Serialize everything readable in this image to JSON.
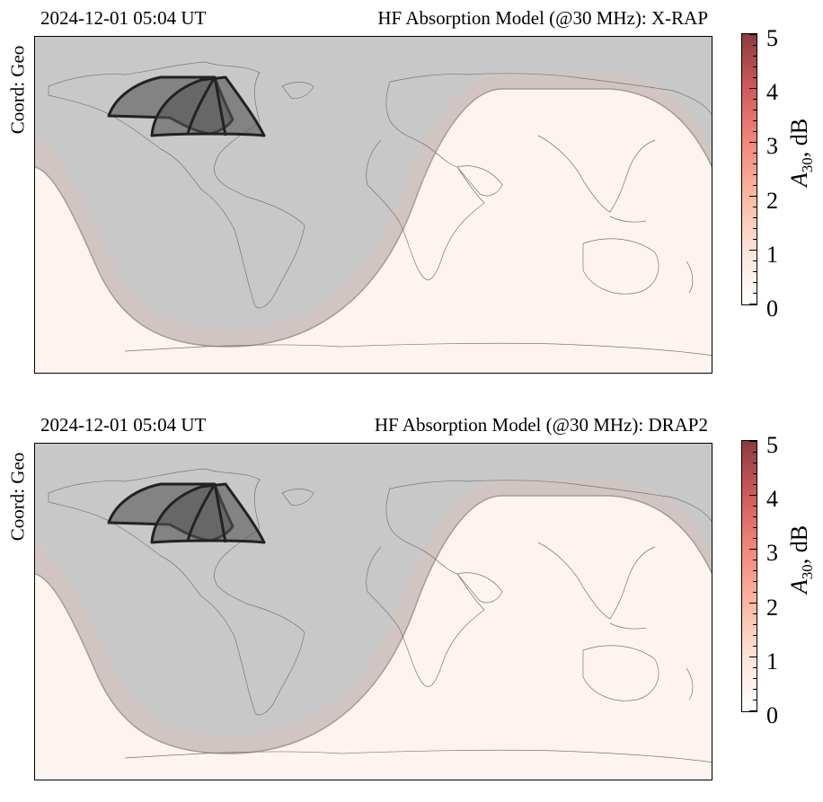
{
  "panels": [
    {
      "time_label": "2024-12-01 05:04 UT",
      "title": "HF Absorption Model (@30 MHz):",
      "model": "X-RAP",
      "coord_label": "Coord: Geo"
    },
    {
      "time_label": "2024-12-01 05:04 UT",
      "title": "HF Absorption Model (@30 MHz):",
      "model": "DRAP2",
      "coord_label": "Coord: Geo"
    }
  ],
  "colorbar": {
    "ticks": [
      "0",
      "1",
      "2",
      "3",
      "4",
      "5"
    ],
    "label_var": "A",
    "label_sub": "30",
    "label_unit": ", dB",
    "range": [
      0,
      5
    ],
    "colors": [
      "#ffffff",
      "#fde3d8",
      "#fbb8a0",
      "#f2877a",
      "#d05a5a",
      "#8a3c3f"
    ]
  },
  "map": {
    "projection": "plate carree",
    "night_shading": "#c8c8c8",
    "twilight_band": "#c9bcbb",
    "day_fill": "#fdf4f0",
    "fov_fill": "#555555",
    "fov_count": 2
  }
}
